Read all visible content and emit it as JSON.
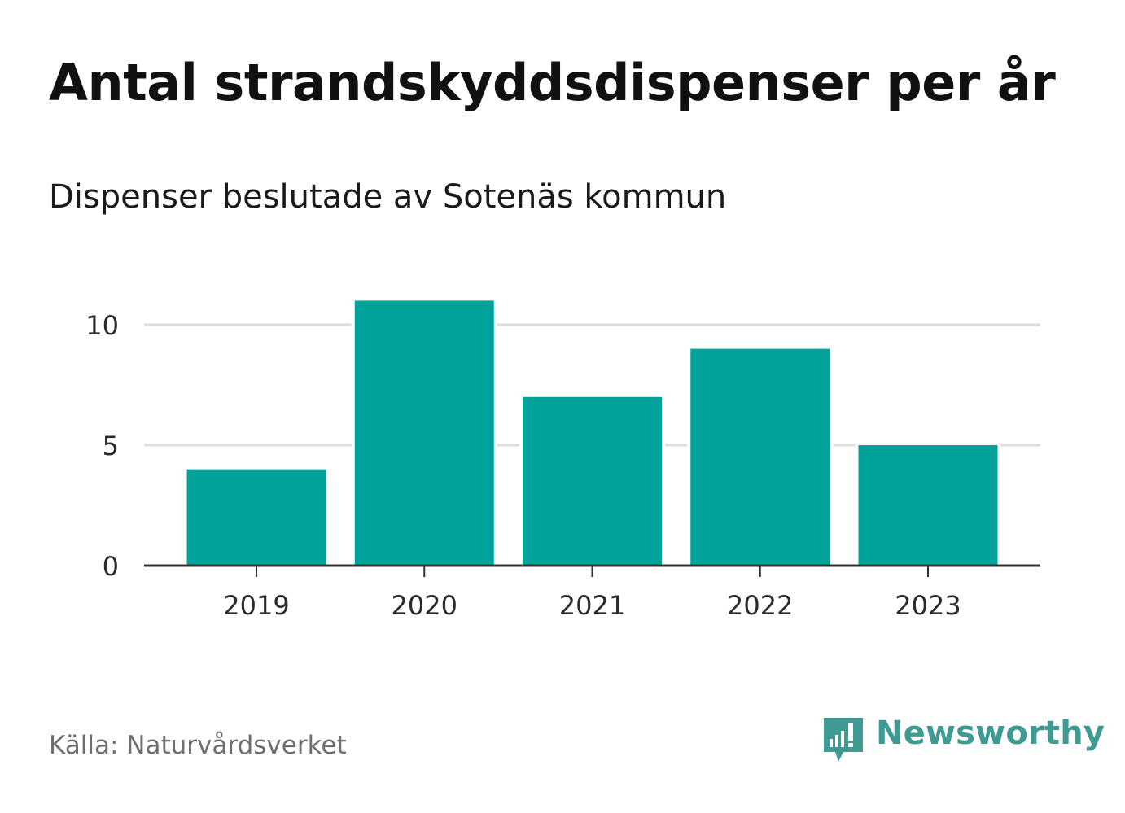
{
  "header": {
    "title": "Antal strandskyddsdispenser per år",
    "subtitle": "Dispenser beslutade av Sotenäs kommun"
  },
  "chart_data": {
    "type": "bar",
    "title": "Antal strandskyddsdispenser per år",
    "subtitle": "Dispenser beslutade av Sotenäs kommun",
    "categories": [
      "2019",
      "2020",
      "2021",
      "2022",
      "2023"
    ],
    "values": [
      4,
      11,
      7,
      9,
      5
    ],
    "xlabel": "",
    "ylabel": "",
    "ylim": [
      0,
      11
    ],
    "yticks": [
      0,
      5,
      10
    ],
    "grid": true,
    "legend": "none",
    "bar_color": "#00a39a",
    "grid_color": "#dddddd",
    "axis_color": "#333333"
  },
  "footer": {
    "source": "Källa: Naturvårdsverket",
    "brand": "Newsworthy",
    "brand_color": "#3f9a93"
  }
}
